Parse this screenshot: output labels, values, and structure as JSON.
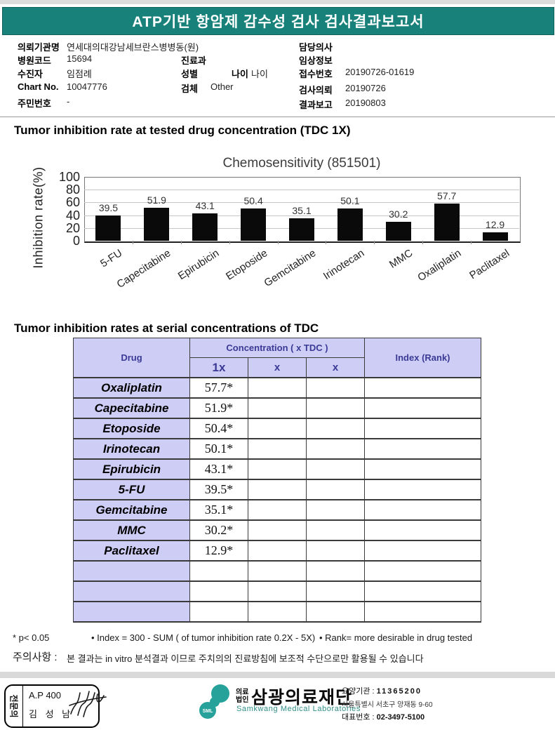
{
  "colors": {
    "header_teal": "#17817a",
    "table_header_bg": "#cdcdf6",
    "table_header_text": "#3a3a96",
    "bar_black": "#0a0a0a"
  },
  "title_bar": "ATP기반 항암제 감수성 검사 검사결과보고서",
  "info": {
    "org": {
      "label": "의뢰기관명",
      "value": "연세대의대강남세브란스병병동(원)"
    },
    "hospital_code": {
      "label": "병원코드",
      "value": "15694"
    },
    "patient": {
      "label": "수진자",
      "value": "임점례"
    },
    "chart_no": {
      "label": "Chart No.",
      "value": "10047776"
    },
    "resident_no": {
      "label": "주민번호",
      "value": "-"
    },
    "dept": {
      "label": "진료과",
      "value": ""
    },
    "sex": {
      "label": "성별",
      "value": ""
    },
    "age": {
      "label": "나이",
      "value": "나이"
    },
    "specimen": {
      "label": "검체",
      "value": "Other"
    },
    "doctor": {
      "label": "담당의사",
      "value": ""
    },
    "clinical_info": {
      "label": "임상정보",
      "value": ""
    },
    "receipt_no": {
      "label": "접수번호",
      "value": "20190726-01619"
    },
    "request_date": {
      "label": "검사의뢰",
      "value": "20190726"
    },
    "report_date": {
      "label": "결과보고",
      "value": "20190803"
    }
  },
  "sections": {
    "chart_title": "Tumor inhibition rate at tested drug concentration (TDC 1X)",
    "table_title": "Tumor inhibition rates at serial concentrations of TDC"
  },
  "chart_data": {
    "type": "bar",
    "title": "Chemosensitivity (851501)",
    "ylabel": "Inhibition rate(%)",
    "xlabel": "",
    "ylim": [
      0,
      100
    ],
    "yticks": [
      0,
      20,
      40,
      60,
      80,
      100
    ],
    "grid": true,
    "legend": "none",
    "categories": [
      "5-FU",
      "Capecitabine",
      "Epirubicin",
      "Etoposide",
      "Gemcitabine",
      "Irinotecan",
      "MMC",
      "Oxaliplatin",
      "Paclitaxel"
    ],
    "values": [
      39.5,
      51.9,
      43.1,
      50.4,
      35.1,
      50.1,
      30.2,
      57.7,
      12.9
    ]
  },
  "table": {
    "headers": {
      "drug": "Drug",
      "concentration": "Concentration ( x TDC )",
      "sub": [
        "1x",
        "x",
        "x"
      ],
      "index": "Index (Rank)"
    },
    "rows": [
      {
        "drug": "Oxaliplatin",
        "values": [
          "57.7*",
          "",
          "",
          ""
        ]
      },
      {
        "drug": "Capecitabine",
        "values": [
          "51.9*",
          "",
          "",
          ""
        ]
      },
      {
        "drug": "Etoposide",
        "values": [
          "50.4*",
          "",
          "",
          ""
        ]
      },
      {
        "drug": "Irinotecan",
        "values": [
          "50.1*",
          "",
          "",
          ""
        ]
      },
      {
        "drug": "Epirubicin",
        "values": [
          "43.1*",
          "",
          "",
          ""
        ]
      },
      {
        "drug": "5-FU",
        "values": [
          "39.5*",
          "",
          "",
          ""
        ]
      },
      {
        "drug": "Gemcitabine",
        "values": [
          "35.1*",
          "",
          "",
          ""
        ]
      },
      {
        "drug": "MMC",
        "values": [
          "30.2*",
          "",
          "",
          ""
        ]
      },
      {
        "drug": "Paclitaxel",
        "values": [
          "12.9*",
          "",
          "",
          ""
        ]
      },
      {
        "drug": "",
        "values": [
          "",
          "",
          "",
          ""
        ]
      },
      {
        "drug": "",
        "values": [
          "",
          "",
          "",
          ""
        ]
      },
      {
        "drug": "",
        "values": [
          "",
          "",
          "",
          ""
        ]
      }
    ]
  },
  "footnotes": {
    "p_note": "* p< 0.05",
    "index_note": "• Index = 300 - SUM ( of tumor inhibition rate 0.2X  -  5X)",
    "rank_note": "• Rank= more desirable in drug tested",
    "caution_label": "주의사항 :",
    "caution_text": "본 결과는 in vitro 분석결과 이므로 주치의의 진료방침에 보조적 수단으로만 활용될 수 있습니다"
  },
  "footer": {
    "stamp": {
      "side": "전문의",
      "line1": "A.P 400",
      "line2": "김 성 남"
    },
    "logo": {
      "sml": "SML",
      "type_top": "의료",
      "type_bottom": "법인",
      "name_kr": "삼광의료재단",
      "name_en": "Samkwang Medical Laboratories"
    },
    "contact": {
      "care_label": "요양기관 :",
      "care_value": "11365200",
      "address": "서울특별시 서초구 양재동 9-60",
      "phone_label": "대표번호 :",
      "phone_value": "02-3497-5100"
    }
  }
}
